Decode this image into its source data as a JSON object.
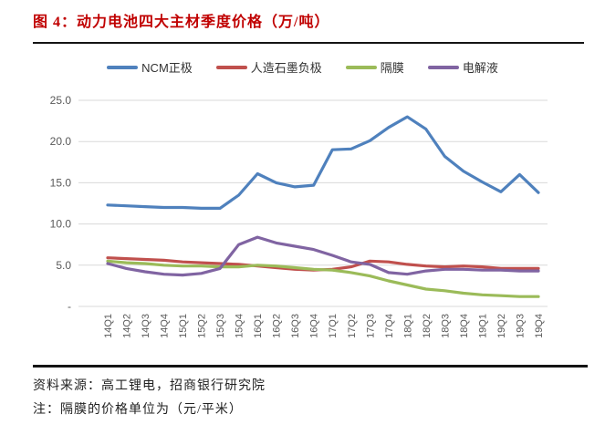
{
  "header": {
    "title": "图 4：动力电池四大主材季度价格（万/吨）"
  },
  "footer": {
    "source": "资料来源：高工锂电，招商银行研究院",
    "note": "注：隔膜的价格单位为（元/平米）"
  },
  "chart_data": {
    "type": "line",
    "title": "动力电池四大主材季度价格（万/吨）",
    "xlabel": "",
    "ylabel": "",
    "ylim": [
      0,
      25
    ],
    "ytick_step": 5,
    "ytick_labels": [
      "-",
      "5.0",
      "10.0",
      "15.0",
      "20.0",
      "25.0"
    ],
    "grid": true,
    "gridline_color": "#d9d9d9",
    "tick_label_color": "#595959",
    "legend_position": "top",
    "categories": [
      "14Q1",
      "14Q2",
      "14Q3",
      "14Q4",
      "15Q1",
      "15Q2",
      "15Q3",
      "15Q4",
      "16Q1",
      "16Q2",
      "16Q3",
      "16Q4",
      "17Q1",
      "17Q2",
      "17Q3",
      "17Q4",
      "18Q1",
      "18Q2",
      "18Q3",
      "18Q4",
      "19Q1",
      "19Q2",
      "19Q3",
      "19Q4"
    ],
    "series": [
      {
        "name": "NCM正极",
        "color": "#4f81bd",
        "values": [
          12.3,
          12.2,
          12.1,
          12.0,
          12.0,
          11.9,
          11.9,
          13.5,
          16.1,
          15.0,
          14.5,
          14.7,
          19.0,
          19.1,
          20.1,
          21.7,
          23.0,
          21.5,
          18.2,
          16.4,
          15.1,
          13.9,
          16.0,
          13.8
        ]
      },
      {
        "name": "人造石墨负极",
        "color": "#c0504d",
        "values": [
          5.9,
          5.8,
          5.7,
          5.6,
          5.4,
          5.3,
          5.2,
          5.1,
          4.9,
          4.7,
          4.5,
          4.4,
          4.5,
          4.8,
          5.5,
          5.4,
          5.1,
          4.9,
          4.8,
          4.9,
          4.8,
          4.6,
          4.6,
          4.6
        ]
      },
      {
        "name": "隔膜",
        "color": "#9bbb59",
        "values": [
          5.5,
          5.3,
          5.2,
          5.0,
          4.9,
          4.9,
          4.8,
          4.8,
          5.0,
          4.9,
          4.7,
          4.5,
          4.4,
          4.1,
          3.7,
          3.1,
          2.6,
          2.1,
          1.9,
          1.6,
          1.4,
          1.3,
          1.2,
          1.2
        ]
      },
      {
        "name": "电解液",
        "color": "#8064a2",
        "values": [
          5.2,
          4.6,
          4.2,
          3.9,
          3.8,
          4.0,
          4.6,
          7.5,
          8.4,
          7.7,
          7.3,
          6.9,
          6.2,
          5.4,
          5.1,
          4.1,
          3.9,
          4.3,
          4.5,
          4.5,
          4.4,
          4.4,
          4.3,
          4.3
        ]
      }
    ]
  }
}
